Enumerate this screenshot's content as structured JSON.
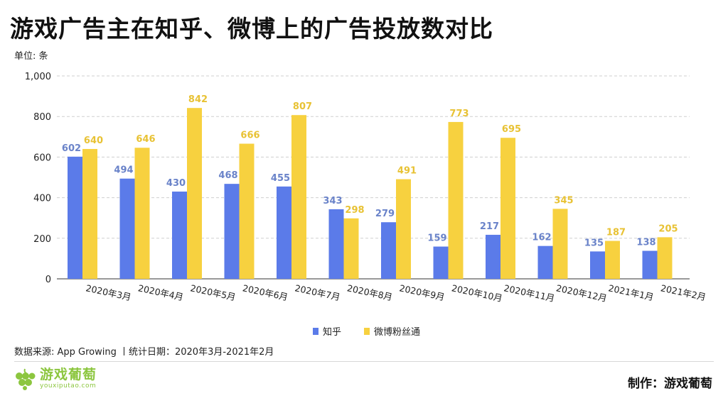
{
  "title": "游戏广告主在知乎、微博上的广告投放数对比",
  "unit_label": "单位: 条",
  "source_text": "数据来源: App Growing  丨统计日期：2020年3月-2021年2月",
  "logo": {
    "name_cn": "游戏葡萄",
    "name_en": "youxiputao.com"
  },
  "credit": "制作：游戏葡萄",
  "colors": {
    "zhihu": "#5b7be9",
    "weibo": "#f7d13f",
    "grid": "#cfcfcf",
    "axis": "#555555",
    "zhihu_label": "#6a83c9",
    "weibo_label": "#e8c234"
  },
  "chart_data": {
    "type": "bar",
    "categories": [
      "2020年3月",
      "2020年4月",
      "2020年5月",
      "2020年6月",
      "2020年7月",
      "2020年8月",
      "2020年9月",
      "2020年10月",
      "2020年11月",
      "2020年12月",
      "2021年1月",
      "2021年2月"
    ],
    "series": [
      {
        "name": "知乎",
        "color": "#5b7be9",
        "values": [
          602,
          494,
          430,
          468,
          455,
          343,
          279,
          159,
          217,
          162,
          135,
          138
        ]
      },
      {
        "name": "微博粉丝通",
        "color": "#f7d13f",
        "values": [
          640,
          646,
          842,
          666,
          807,
          298,
          491,
          773,
          695,
          345,
          187,
          205
        ]
      }
    ],
    "ylim": [
      0,
      1000
    ],
    "yticks": [
      0,
      200,
      400,
      600,
      800,
      1000
    ],
    "ytick_labels": [
      "0",
      "200",
      "400",
      "600",
      "800",
      "1,000"
    ],
    "grid": true,
    "legend_position": "bottom-center"
  }
}
